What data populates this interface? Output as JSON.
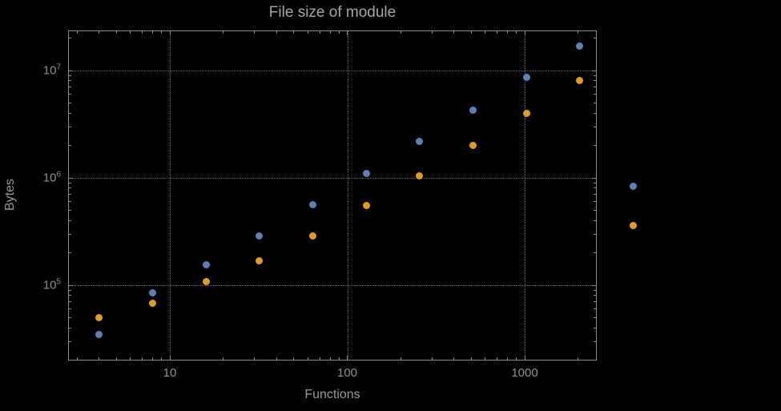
{
  "chart_data": {
    "type": "scatter",
    "title": "File size of module",
    "xlabel": "Functions",
    "ylabel": "Bytes",
    "x_scale": "log",
    "y_scale": "log",
    "xlim": [
      2.7,
      2550
    ],
    "ylim": [
      20000,
      24000000
    ],
    "grid": "dotted lines at major decades",
    "legend": "none",
    "x": [
      4,
      8,
      16,
      32,
      64,
      128,
      256,
      512,
      1024,
      2048,
      4096
    ],
    "series": [
      {
        "name": "series-blue",
        "color": "#5e81b5",
        "values": [
          35000,
          85000,
          155000,
          290000,
          560000,
          1100000,
          2200000,
          4300000,
          8600000,
          17000000,
          830000
        ]
      },
      {
        "name": "series-orange",
        "color": "#e19c24",
        "values": [
          50000,
          68000,
          108000,
          170000,
          290000,
          550000,
          1050000,
          2000000,
          4000000,
          8000000,
          360000
        ]
      }
    ],
    "x_ticks": [
      {
        "value": 10,
        "label": "10"
      },
      {
        "value": 100,
        "label": "100"
      },
      {
        "value": 1000,
        "label": "1000"
      }
    ],
    "y_ticks": [
      {
        "value": 100000,
        "base": "10",
        "exp": "5"
      },
      {
        "value": 1000000,
        "base": "10",
        "exp": "6"
      },
      {
        "value": 10000000,
        "base": "10",
        "exp": "7"
      }
    ]
  },
  "colors": {
    "background": "#000000",
    "frame": "#8a8a8a",
    "grid": "#676767",
    "title_text": "#a6a6a6",
    "axis_text": "#9a9a9a",
    "tick_text": "#8f8f8f",
    "series_blue": "#5e81b5",
    "series_orange": "#e19c24"
  }
}
